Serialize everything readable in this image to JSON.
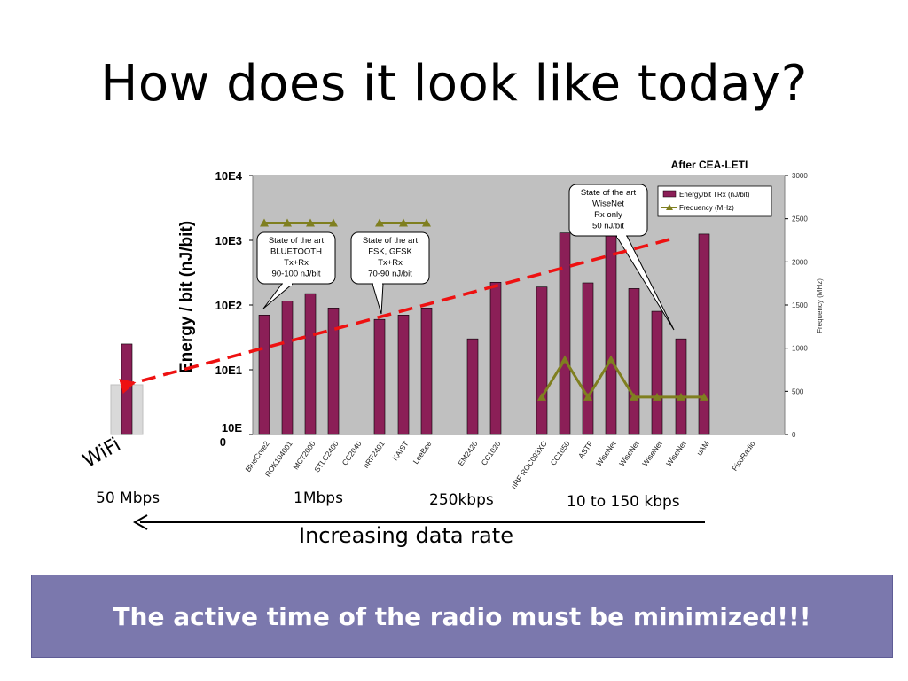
{
  "slide": {
    "title": "How does it look like today?",
    "banner": "The active time of the radio must be minimized!!!",
    "wifi_label": "WiFi",
    "rate_labels": [
      "50 Mbps",
      "1Mbps",
      "250kbps",
      "10 to 150 kbps"
    ],
    "arrow_label": "Increasing data rate"
  },
  "colors": {
    "bar": "#8b1f57",
    "plot_bg": "#c0c0c0",
    "freq_line": "#7f7f1f",
    "trend": "#ee1111",
    "banner_bg": "#7b78ad"
  },
  "chart_data": {
    "type": "bar",
    "source_note": "After CEA-LETI",
    "ylabel": "Energy / bit (nJ/bit)",
    "y_ticks_left": [
      "10E4",
      "10E3",
      "10E2",
      "10E1",
      "10E0"
    ],
    "y2label": "Frequency (MHz)",
    "y2_ticks": [
      "3000",
      "2500",
      "2000",
      "1500",
      "1000",
      "500",
      "0"
    ],
    "y2lim": [
      0,
      3000
    ],
    "log_scale": true,
    "ylim_log10": [
      0,
      4
    ],
    "categories": [
      "BlueCore2",
      "ROK104001",
      "MC72000",
      "STLC2400",
      "CC2040",
      "nRF2401",
      "KAIST",
      "LeeBee",
      "EM2420",
      "CC1020",
      "nRF ROC093XC",
      "CC1050",
      "ASTF",
      "WiseNet",
      "WiseNet",
      "WiseNet",
      "WiseNet",
      "uAM",
      "PicoRadio"
    ],
    "series": [
      {
        "name": "Energy/bit TRx (nJ/bit)",
        "values": [
          70,
          115,
          150,
          90,
          null,
          60,
          70,
          90,
          30,
          225,
          190,
          1300,
          220,
          1300,
          180,
          80,
          30,
          1250,
          null
        ]
      },
      {
        "name": "Frequency (MHz)",
        "values": [
          2450,
          2450,
          2450,
          2450,
          null,
          2450,
          2450,
          2450,
          null,
          null,
          433,
          868,
          433,
          868,
          433,
          433,
          433,
          433,
          null
        ]
      }
    ],
    "wifi_value": 25,
    "annotations": [
      "State of the art\nBLUETOOTH\nTx+Rx\n90-100 nJ/bit",
      "State of the art\nFSK, GFSK\nTx+Rx\n70-90 nJ/bit",
      "State of the art\nWiseNet\nRx only\n50 nJ/bit"
    ],
    "legend_position": "top-right"
  }
}
